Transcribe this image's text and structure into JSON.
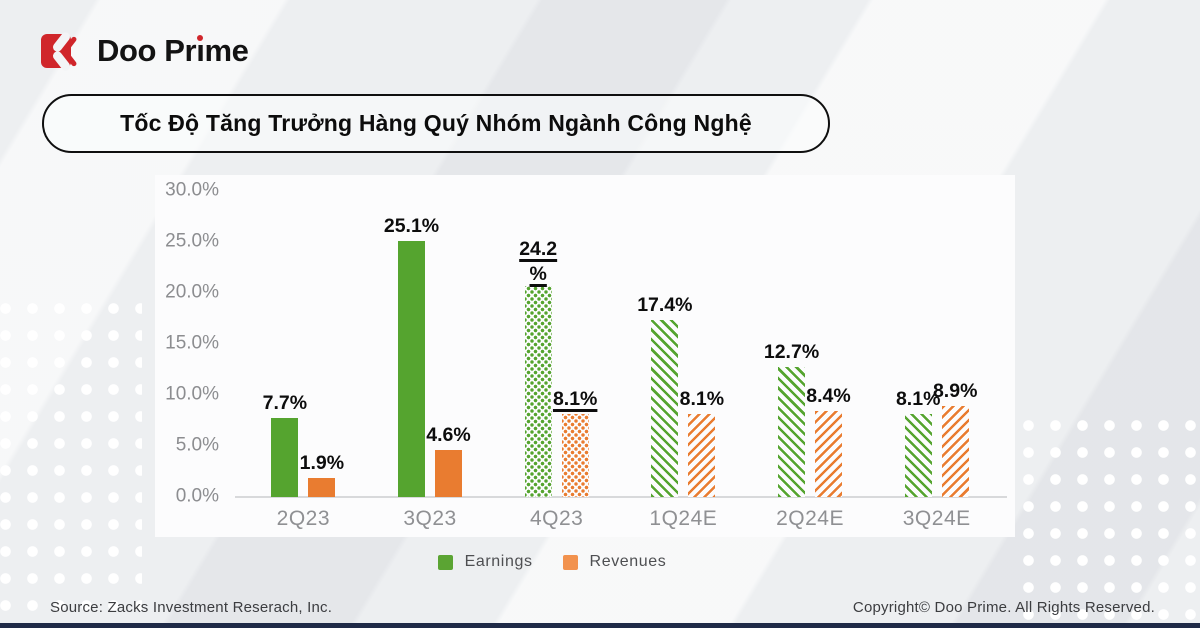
{
  "logo": {
    "text": "Doo Prime",
    "text_parts": {
      "pre": "Doo Pr",
      "i": "ı",
      "post": "me"
    }
  },
  "title": "Tốc Độ Tăng Trưởng Hàng Quý Nhóm Ngành Công Nghệ",
  "legend": [
    {
      "label": "Earnings",
      "color": "#5BA433"
    },
    {
      "label": "Revenues",
      "color": "#F2924E"
    }
  ],
  "footer": {
    "source": "Source: Zacks Investment Reserach, Inc.",
    "copyright": "Copyright© Doo Prime. All Rights Reserved."
  },
  "colors": {
    "brand_red": "#D0262B",
    "earnings_green": "#55A42F",
    "revenues_orange": "#E97C30",
    "page_background": "#EDEFF1",
    "card_background": "#FCFCFD",
    "axis_text_gray": "#8C8D90",
    "bottom_bar_navy": "#1F2A47"
  },
  "icons": {
    "logo_mark": "doo-prime-red-square-chevron"
  },
  "chart_data": {
    "type": "bar",
    "title": "Tốc Độ Tăng Trưởng Hàng Quý Nhóm Ngành Công Nghệ",
    "categories": [
      "2Q23",
      "3Q23",
      "4Q23",
      "1Q24E",
      "2Q24E",
      "3Q24E"
    ],
    "series": [
      {
        "name": "Earnings",
        "color": "#55A42F",
        "values": [
          7.7,
          25.1,
          24.2,
          17.4,
          12.7,
          8.1
        ]
      },
      {
        "name": "Revenues",
        "color": "#E97C30",
        "values": [
          1.9,
          4.6,
          8.1,
          8.1,
          8.4,
          8.9
        ]
      }
    ],
    "data_labels": {
      "earnings": [
        "7.7%",
        "25.1%",
        [
          "24.2",
          "%"
        ],
        "17.4%",
        "12.7%",
        "8.1%"
      ],
      "revenues": [
        "1.9%",
        "4.6%",
        "8.1%",
        "8.1%",
        "8.4%",
        "8.9%"
      ]
    },
    "group_styles": [
      "solid",
      "solid",
      "dotted",
      "striped",
      "striped",
      "striped"
    ],
    "underlined_groups": [
      2
    ],
    "y_ticks": [
      "30.0%",
      "25.0%",
      "20.0%",
      "15.0%",
      "10.0%",
      "5.0%",
      "0.0%"
    ],
    "ylim": [
      0,
      30
    ],
    "xlabel": "",
    "ylabel": "",
    "grid": false,
    "legend_position": "bottom"
  }
}
